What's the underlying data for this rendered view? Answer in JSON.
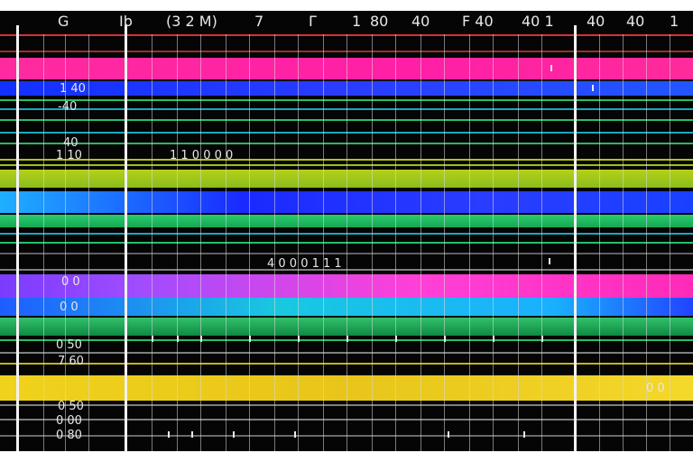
{
  "header": {
    "labels": [
      "G",
      "Ib",
      "(3 2 M)",
      "7",
      "Г",
      "1",
      "80",
      "40",
      "F 40",
      "40 1",
      "40",
      "40",
      "1"
    ]
  },
  "row_labels": [
    "1 40",
    "-40",
    "40",
    "1 10",
    "0 0",
    "0 0",
    "0 50",
    "7 60",
    "0 50",
    "0 00",
    "0 80"
  ],
  "inline_labels": [
    "1 1 0 0 0 0",
    "4 0 0 0 1 1 1",
    "0 0"
  ],
  "colors": {
    "background": "#050505",
    "magenta": "#ff1fa6",
    "blue": "#2a3cff",
    "green": "#2de27a",
    "yellow": "#d4e21a",
    "cyan": "#19c8e0",
    "violet": "#8a3cff",
    "gold": "#f0d21c",
    "red": "#ff3a3a"
  }
}
